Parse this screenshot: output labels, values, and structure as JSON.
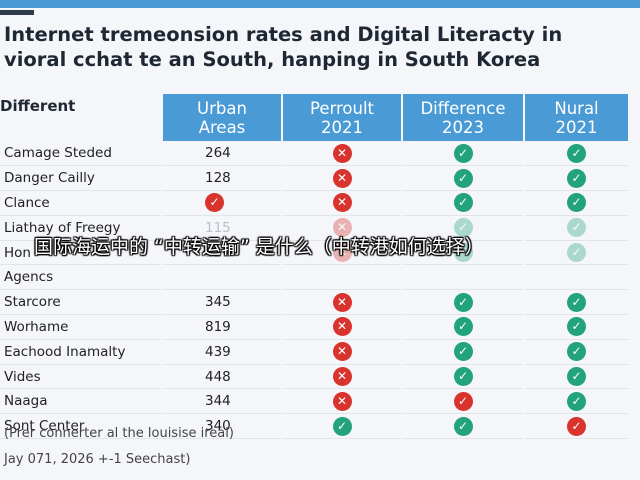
{
  "colors": {
    "header_blue": "#4a9ad6",
    "check_green": "#22a37a",
    "cross_red": "#d9332e",
    "topbar": "#4a9ad6"
  },
  "title": {
    "line1": "Internet tremeonsion rates and Digital Literacty in",
    "line2": "vioral cchat te an South, hanping in South Korea"
  },
  "table": {
    "headers": [
      "Different",
      "Urban\nAreas",
      "Perroult\n2021",
      "Difference\n2023",
      "Nural\n2021"
    ],
    "rows": [
      {
        "name": "Camage Steded",
        "value": "264",
        "marks": [
          "cross",
          "check",
          "check"
        ],
        "faded": false
      },
      {
        "name": "Danger Cailly",
        "value": "128",
        "marks": [
          "cross",
          "check",
          "check"
        ],
        "faded": false
      },
      {
        "name": "Clance",
        "value": "",
        "value_mark": "check-red",
        "marks": [
          "cross",
          "check",
          "check"
        ],
        "faded": false
      },
      {
        "name": "Liathay of Freegy",
        "value": "115",
        "marks": [
          "cross",
          "check",
          "check"
        ],
        "faded": true
      },
      {
        "name": "Hon",
        "value": "221",
        "marks": [
          "cross",
          "check",
          "check"
        ],
        "faded": true
      },
      {
        "name": "Agencs",
        "value": "",
        "marks": [
          "",
          "",
          ""
        ],
        "faded": false
      },
      {
        "name": "Starcore",
        "value": "345",
        "marks": [
          "cross",
          "check",
          "check"
        ],
        "faded": false
      },
      {
        "name": "Worhame",
        "value": "819",
        "marks": [
          "cross",
          "check",
          "check"
        ],
        "faded": false
      },
      {
        "name": "Eachood Inamalty",
        "value": "439",
        "marks": [
          "cross",
          "check",
          "check"
        ],
        "faded": false
      },
      {
        "name": "Vides",
        "value": "448",
        "marks": [
          "cross",
          "check",
          "check"
        ],
        "faded": false
      },
      {
        "name": "Naaga",
        "value": "344",
        "marks": [
          "cross",
          "check-red",
          "check"
        ],
        "faded": false
      },
      {
        "name": "Sont Center",
        "value": "340",
        "marks": [
          "check",
          "check",
          "check-red"
        ],
        "faded": false
      }
    ]
  },
  "notes": {
    "line1": "(Prer connerter al the louisise ireal)",
    "line2": "Jay 071, 2026 +-1 Seechast)"
  },
  "overlay": "国际海运中的 “中转运输” 是什么（中转港如何选择）"
}
